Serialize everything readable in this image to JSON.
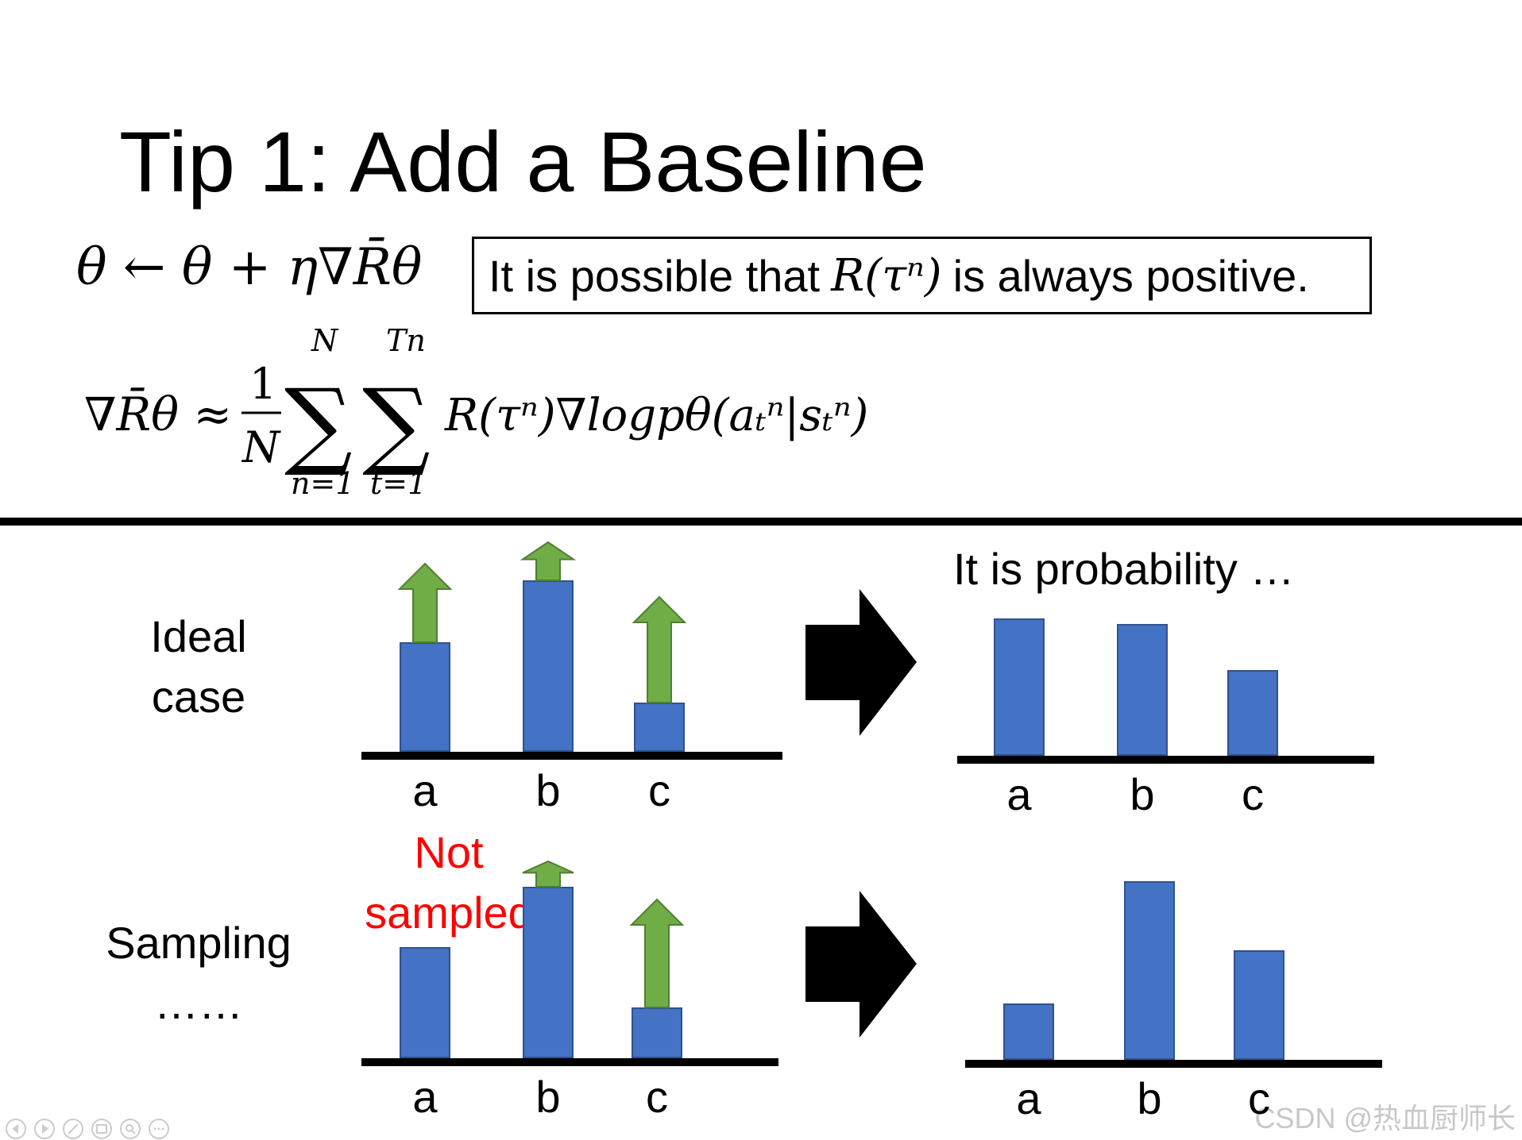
{
  "title": "Tip 1: Add a Baseline",
  "equation_update": "θ ← θ + η∇R̄θ",
  "note": {
    "before": "It is possible that",
    "math": "R(τⁿ)",
    "after": "is always positive."
  },
  "equation_gradient": {
    "lhs": "∇R̄θ ≈",
    "frac_num": "1",
    "frac_den": "N",
    "sum1_top": "N",
    "sum1_bottom": "n=1",
    "sum2_top": "Tn",
    "sum2_bottom": "t=1",
    "body": "R(τⁿ)∇logpθ(aₜⁿ|sₜⁿ)"
  },
  "rows": [
    {
      "label_line1": "Ideal",
      "label_line2": "case"
    },
    {
      "label_line1": "Sampling",
      "label_line2": "……",
      "annotation_line1": "Not",
      "annotation_line2": "sampled"
    }
  ],
  "result_title": "It is probability …",
  "categories": [
    "a",
    "b",
    "c"
  ],
  "colors": {
    "bar": "#4472C4",
    "arrow": "#70AD47",
    "annotation": "#FF0000"
  },
  "watermark": "CSDN @热血厨师长",
  "chart_data": [
    {
      "type": "bar",
      "name": "ideal-before",
      "categories": [
        "a",
        "b",
        "c"
      ],
      "values": [
        0.6,
        0.94,
        0.27
      ],
      "arrow_up": [
        0.43,
        0.21,
        0.58
      ]
    },
    {
      "type": "bar",
      "name": "ideal-after",
      "categories": [
        "a",
        "b",
        "c"
      ],
      "values": [
        0.75,
        0.72,
        0.47
      ]
    },
    {
      "type": "bar",
      "name": "sampling-before",
      "categories": [
        "a",
        "b",
        "c"
      ],
      "values": [
        0.61,
        0.94,
        0.28
      ],
      "arrow_up": [
        0,
        0.14,
        0.59
      ]
    },
    {
      "type": "bar",
      "name": "sampling-after",
      "categories": [
        "a",
        "b",
        "c"
      ],
      "values": [
        0.31,
        0.98,
        0.6
      ]
    }
  ]
}
